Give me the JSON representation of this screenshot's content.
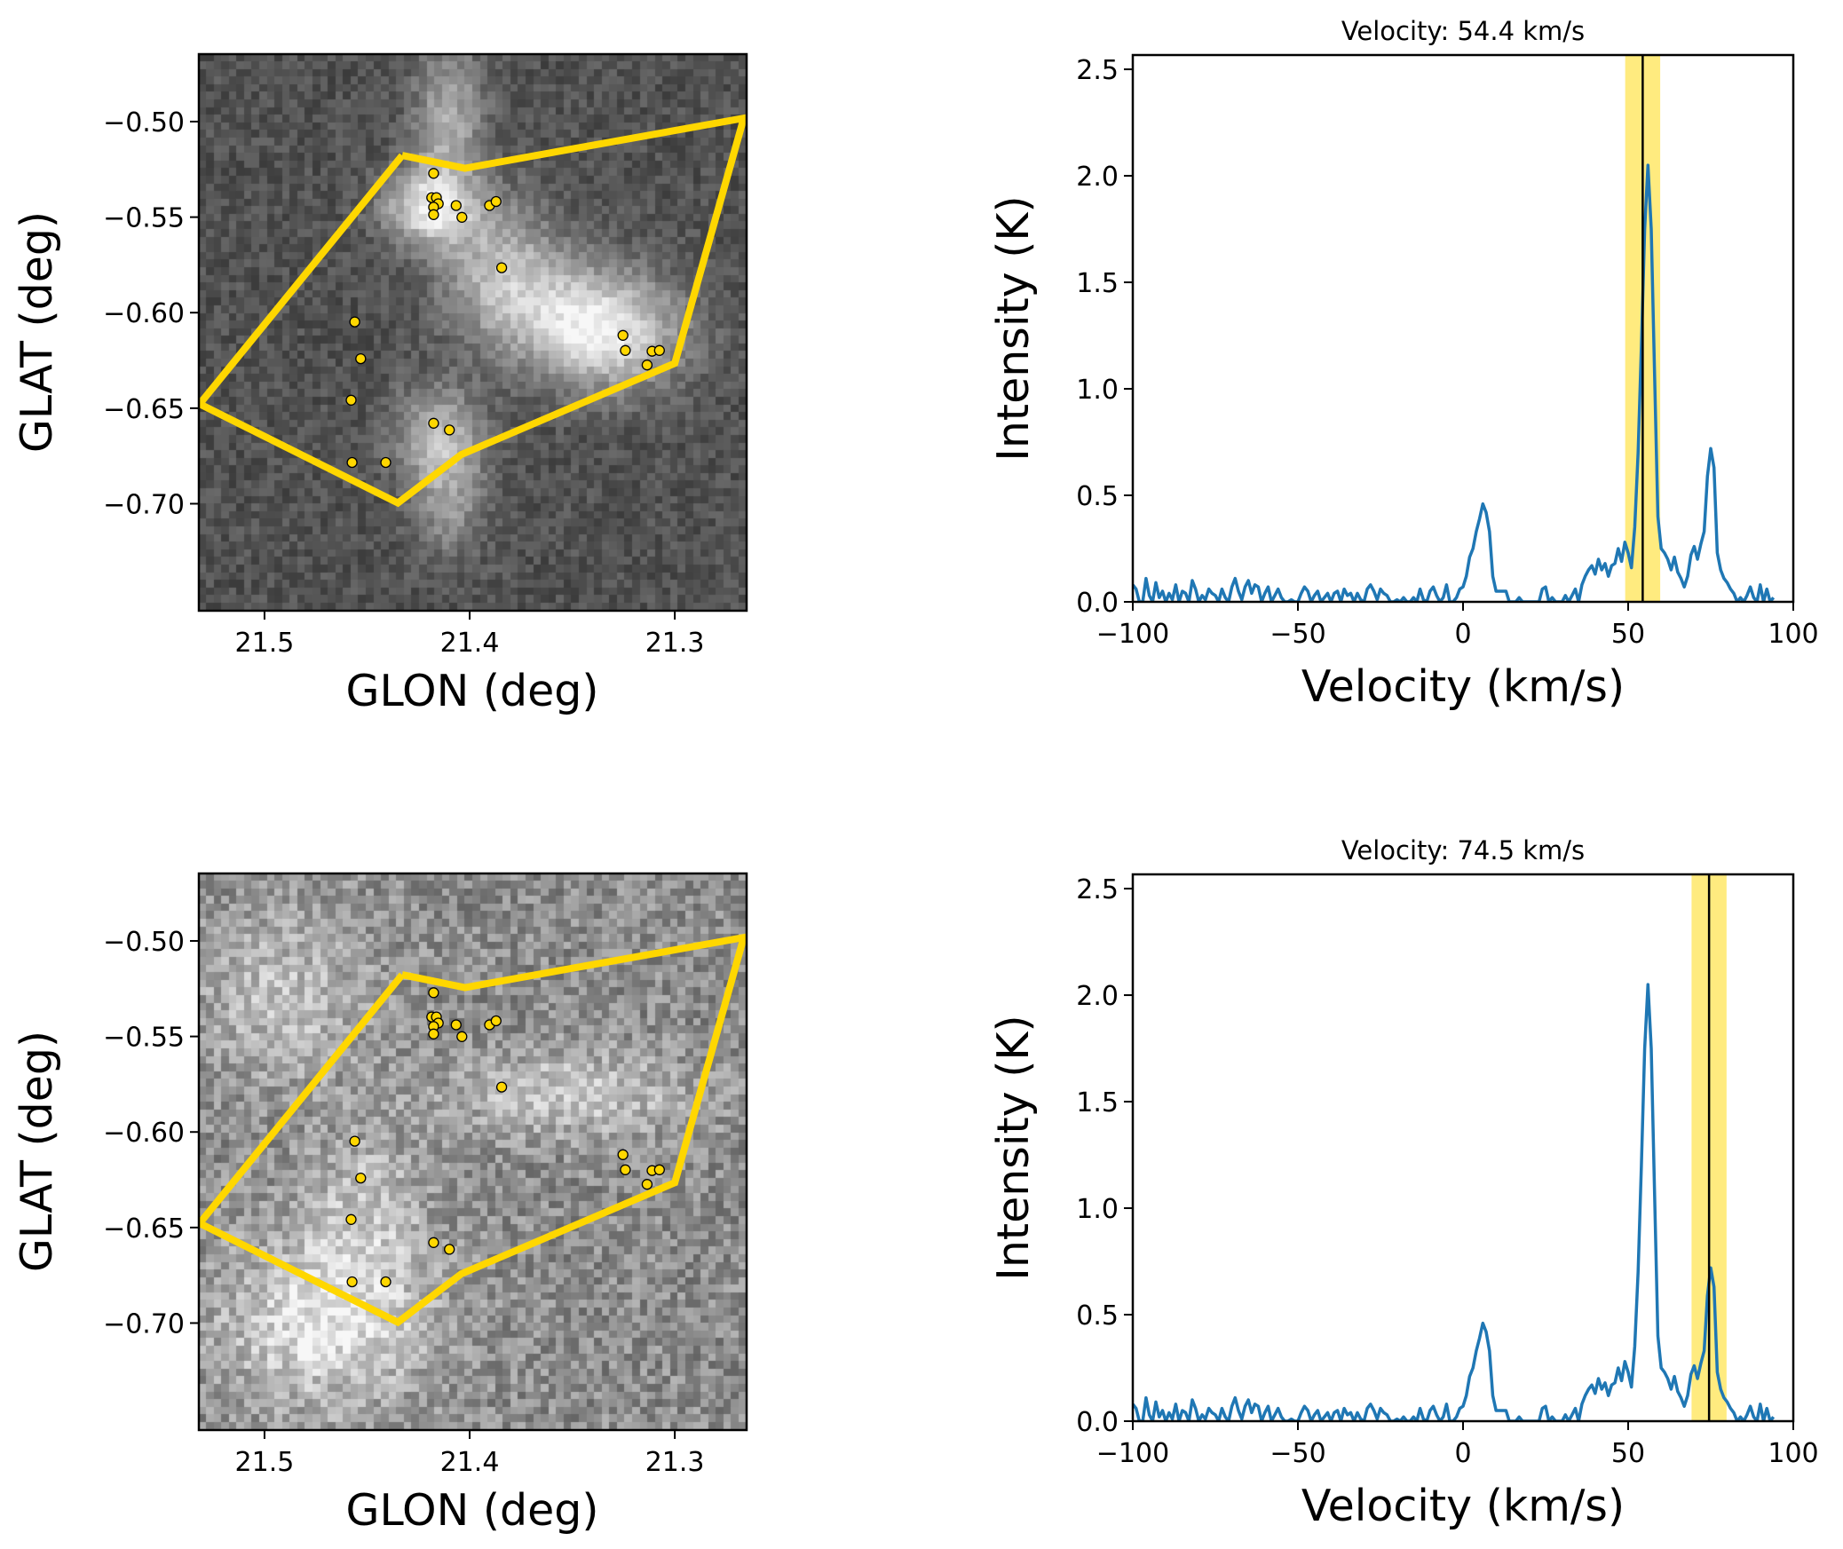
{
  "chart_data": [
    {
      "type": "image",
      "panel": "map-top",
      "xlabel": "GLON (deg)",
      "ylabel": "GLAT (deg)",
      "xlim": [
        21.532,
        21.265
      ],
      "ylim": [
        -0.756,
        -0.4647
      ],
      "xticks": [
        21.5,
        21.4,
        21.3
      ],
      "xtick_labels": [
        "21.5",
        "21.4",
        "21.3"
      ],
      "yticks": [
        -0.5,
        -0.55,
        -0.6,
        -0.65,
        -0.7
      ],
      "ytick_labels": [
        "−0.50",
        "−0.55",
        "−0.60",
        "−0.65",
        "−0.70"
      ],
      "colormap": "gray",
      "channel_velocity_kms": 54.4,
      "polygon_color": "#FFD700",
      "polygon": [
        [
          21.4329,
          -0.5177
        ],
        [
          21.4023,
          -0.5244
        ],
        [
          21.2664,
          -0.4982
        ],
        [
          21.3,
          -0.6265
        ],
        [
          21.4041,
          -0.6743
        ],
        [
          21.435,
          -0.6996
        ],
        [
          21.5316,
          -0.6478
        ]
      ],
      "sources_color": "#FFD700",
      "sources": [
        [
          21.4176,
          -0.5271
        ],
        [
          21.4185,
          -0.5398
        ],
        [
          21.4162,
          -0.5398
        ],
        [
          21.4153,
          -0.543
        ],
        [
          21.4176,
          -0.5448
        ],
        [
          21.4176,
          -0.5487
        ],
        [
          21.4066,
          -0.5439
        ],
        [
          21.4038,
          -0.5501
        ],
        [
          21.3903,
          -0.5439
        ],
        [
          21.3871,
          -0.5418
        ],
        [
          21.3844,
          -0.5765
        ],
        [
          21.456,
          -0.6048
        ],
        [
          21.4531,
          -0.6241
        ],
        [
          21.4578,
          -0.6458
        ],
        [
          21.4176,
          -0.6579
        ],
        [
          21.4099,
          -0.6614
        ],
        [
          21.4573,
          -0.6784
        ],
        [
          21.4409,
          -0.6784
        ],
        [
          21.3253,
          -0.6119
        ],
        [
          21.3241,
          -0.6198
        ],
        [
          21.3111,
          -0.6202
        ],
        [
          21.3075,
          -0.6198
        ],
        [
          21.3135,
          -0.6274
        ]
      ]
    },
    {
      "type": "line",
      "panel": "spectrum-top",
      "title": "Velocity: 54.4 km/s",
      "xlabel": "Velocity (km/s)",
      "ylabel": "Intensity (K)",
      "xlim": [
        -100,
        100
      ],
      "ylim": [
        0,
        2.567
      ],
      "xticks": [
        -100,
        -50,
        0,
        50,
        100
      ],
      "xtick_labels": [
        "−100",
        "−50",
        "0",
        "50",
        "100"
      ],
      "yticks": [
        0.0,
        0.5,
        1.0,
        1.5,
        2.0,
        2.5
      ],
      "ytick_labels": [
        "0.0",
        "0.5",
        "1.0",
        "1.5",
        "2.0",
        "2.5"
      ],
      "line_color": "#1f77b4",
      "marker_velocity": 54.4,
      "band": [
        49.1,
        59.7
      ],
      "band_color": "#FFD700"
    },
    {
      "type": "image",
      "panel": "map-bottom",
      "xlabel": "GLON (deg)",
      "ylabel": "GLAT (deg)",
      "xlim": [
        21.532,
        21.265
      ],
      "ylim": [
        -0.756,
        -0.4647
      ],
      "xticks": [
        21.5,
        21.4,
        21.3
      ],
      "xtick_labels": [
        "21.5",
        "21.4",
        "21.3"
      ],
      "yticks": [
        -0.5,
        -0.55,
        -0.6,
        -0.65,
        -0.7
      ],
      "ytick_labels": [
        "−0.50",
        "−0.55",
        "−0.60",
        "−0.65",
        "−0.70"
      ],
      "colormap": "gray",
      "channel_velocity_kms": 74.5,
      "polygon_color": "#FFD700",
      "sources_color": "#FFD700",
      "same_overlay_as": "map-top"
    },
    {
      "type": "line",
      "panel": "spectrum-bottom",
      "title": "Velocity: 74.5 km/s",
      "xlabel": "Velocity (km/s)",
      "ylabel": "Intensity (K)",
      "xlim": [
        -100,
        100
      ],
      "ylim": [
        0,
        2.567
      ],
      "xticks": [
        -100,
        -50,
        0,
        50,
        100
      ],
      "xtick_labels": [
        "−100",
        "−50",
        "0",
        "50",
        "100"
      ],
      "yticks": [
        0.0,
        0.5,
        1.0,
        1.5,
        2.0,
        2.5
      ],
      "ytick_labels": [
        "0.0",
        "0.5",
        "1.0",
        "1.5",
        "2.0",
        "2.5"
      ],
      "line_color": "#1f77b4",
      "marker_velocity": 74.5,
      "band": [
        69.2,
        79.8
      ],
      "band_color": "#FFD700"
    }
  ],
  "spectrum": {
    "velocity_kms": [
      -100,
      -99,
      -98,
      -97,
      -96,
      -95,
      -94,
      -93,
      -92,
      -91,
      -90,
      -89,
      -88,
      -87,
      -86,
      -85,
      -84,
      -83,
      -82,
      -81,
      -80,
      -79,
      -78,
      -77,
      -76,
      -75,
      -74,
      -73,
      -72,
      -71,
      -70,
      -69,
      -68,
      -67,
      -66,
      -65,
      -64,
      -63,
      -62,
      -61,
      -60,
      -59,
      -58,
      -57,
      -56,
      -55,
      -54,
      -53,
      -52,
      -51,
      -50,
      -49,
      -48,
      -47,
      -46,
      -45,
      -44,
      -43,
      -42,
      -41,
      -40,
      -39,
      -38,
      -37,
      -36,
      -35,
      -34,
      -33,
      -32,
      -31,
      -30,
      -29,
      -28,
      -27,
      -26,
      -25,
      -24,
      -23,
      -22,
      -21,
      -20,
      -19,
      -18,
      -17,
      -16,
      -15,
      -14,
      -13,
      -12,
      -11,
      -10,
      -9,
      -8,
      -7,
      -6,
      -5,
      -4,
      -3,
      -2,
      -1,
      0,
      1,
      2,
      3,
      4,
      5,
      6,
      7,
      8,
      9,
      10,
      11,
      12,
      13,
      14,
      15,
      16,
      17,
      18,
      19,
      20,
      21,
      22,
      23,
      24,
      25,
      26,
      27,
      28,
      29,
      30,
      31,
      32,
      33,
      34,
      35,
      36,
      37,
      38,
      39,
      40,
      41,
      42,
      43,
      44,
      45,
      46,
      47,
      48,
      49,
      50,
      51,
      52,
      53,
      54,
      55,
      56,
      57,
      58,
      59,
      60,
      61,
      62,
      63,
      64,
      65,
      66,
      67,
      68,
      69,
      70,
      71,
      72,
      73,
      74,
      75,
      76,
      77,
      78,
      79,
      80,
      81,
      82,
      83,
      84,
      85,
      86,
      87,
      88,
      89,
      90,
      91,
      92,
      93,
      94,
      95,
      96,
      97,
      98,
      99,
      100
    ],
    "intensity_K": [
      0.08,
      0.06,
      0.0,
      0.0,
      0.11,
      0.03,
      0.0,
      0.09,
      0.02,
      0.05,
      0.0,
      0.04,
      0.01,
      0.08,
      0.0,
      0.05,
      0.04,
      0.0,
      0.1,
      0.06,
      0.0,
      0.03,
      0.01,
      0.06,
      0.04,
      0.03,
      0.0,
      0.06,
      0.02,
      0.0,
      0.07,
      0.11,
      0.05,
      0.01,
      0.07,
      0.1,
      0.04,
      0.08,
      0.07,
      0.0,
      0.04,
      0.07,
      0.0,
      0.03,
      0.06,
      0.02,
      0.0,
      0.0,
      0.01,
      0.0,
      0.0,
      0.04,
      0.07,
      0.05,
      0.0,
      0.03,
      0.05,
      0.0,
      0.02,
      0.04,
      0.0,
      0.04,
      0.05,
      0.0,
      0.06,
      0.03,
      0.04,
      0.0,
      0.04,
      0.01,
      0.0,
      0.06,
      0.08,
      0.05,
      0.01,
      0.06,
      0.04,
      0.03,
      0.0,
      0.0,
      0.01,
      0.0,
      0.02,
      0.0,
      0.0,
      0.02,
      0.0,
      0.06,
      0.01,
      0.0,
      0.05,
      0.07,
      0.03,
      0.0,
      0.02,
      0.08,
      0.0,
      0.0,
      0.02,
      0.06,
      0.07,
      0.12,
      0.21,
      0.25,
      0.33,
      0.39,
      0.46,
      0.42,
      0.33,
      0.12,
      0.05,
      0.05,
      0.05,
      0.05,
      0.0,
      0.0,
      0.0,
      0.02,
      0.0,
      0.0,
      0.0,
      0.0,
      0.0,
      0.0,
      0.06,
      0.07,
      0.0,
      0.02,
      0.0,
      0.0,
      0.0,
      0.03,
      0.0,
      0.03,
      0.06,
      0.0,
      0.08,
      0.12,
      0.15,
      0.17,
      0.13,
      0.2,
      0.15,
      0.18,
      0.12,
      0.17,
      0.18,
      0.25,
      0.19,
      0.28,
      0.23,
      0.16,
      0.35,
      0.7,
      1.2,
      1.75,
      2.05,
      1.75,
      1.06,
      0.4,
      0.25,
      0.23,
      0.2,
      0.15,
      0.21,
      0.14,
      0.11,
      0.07,
      0.12,
      0.22,
      0.26,
      0.2,
      0.27,
      0.33,
      0.59,
      0.72,
      0.63,
      0.23,
      0.15,
      0.11,
      0.09,
      0.06,
      0.04,
      0.0,
      0.02,
      0.0,
      0.03,
      0.07,
      0.02,
      0.0,
      0.08,
      0.0,
      0.06,
      0.0,
      0.02
    ]
  }
}
